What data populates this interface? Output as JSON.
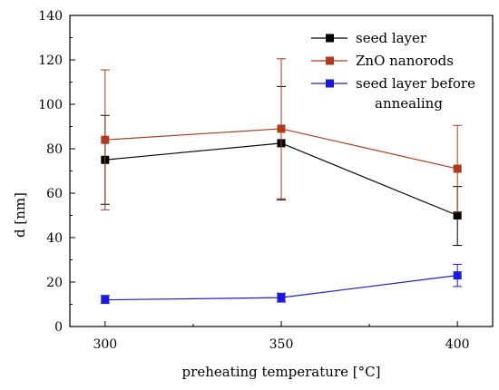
{
  "chart_data": {
    "type": "line",
    "title": "",
    "xlabel": "preheating temperature [°C]",
    "ylabel": "d [nm]",
    "x": [
      300,
      350,
      400
    ],
    "xticks": [
      "300",
      "350",
      "400"
    ],
    "xlim": [
      290,
      410
    ],
    "ylim": [
      0,
      140
    ],
    "yticks": [
      "0",
      "20",
      "40",
      "60",
      "80",
      "100",
      "120",
      "140"
    ],
    "grid": false,
    "legend_position": "top-right",
    "series": [
      {
        "name": "seed layer",
        "color": "#000000",
        "values": [
          75,
          82.5,
          50
        ],
        "err_low": [
          55,
          57,
          36.5
        ],
        "err_high": [
          95,
          108,
          63
        ]
      },
      {
        "name": "ZnO nanorods",
        "color": "#b03a1c",
        "values": [
          84,
          89,
          71
        ],
        "err_low": [
          52.5,
          57.5,
          51.5
        ],
        "err_high": [
          115.5,
          120.5,
          90.5
        ]
      },
      {
        "name": "seed layer before annealing",
        "legend_lines": [
          "seed layer before",
          "annealing"
        ],
        "color": "#1a1adf",
        "values": [
          12,
          13,
          23
        ],
        "err_low": [
          10.5,
          11,
          18
        ],
        "err_high": [
          14,
          15,
          28
        ]
      }
    ]
  }
}
